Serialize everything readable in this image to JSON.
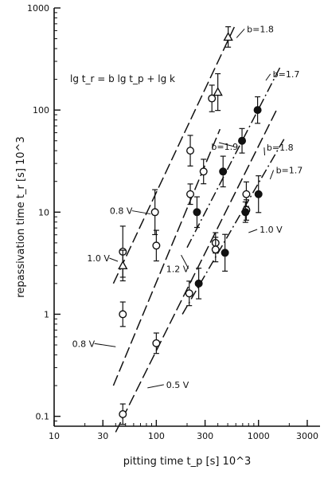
{
  "chart_data": {
    "type": "scatter",
    "title": "",
    "xlabel": "pitting time  t_p [s] 10^3",
    "ylabel": "repassivation time  t_r [s] 10^3",
    "x_scale": "log",
    "y_scale": "log",
    "xlim": [
      10,
      4000
    ],
    "ylim": [
      0.08,
      1000
    ],
    "x_ticks": [
      10,
      30,
      100,
      300,
      1000,
      3000
    ],
    "x_tick_labels": [
      "10",
      "30",
      "100",
      "300",
      "1000",
      "3000"
    ],
    "y_ticks": [
      0.1,
      1,
      10,
      100,
      1000
    ],
    "y_tick_labels": [
      "0.1",
      "1",
      "10",
      "100",
      "1000"
    ],
    "grid": false,
    "equation": "lg t_r = b lg t_p + lg k",
    "series": [
      {
        "marker": "open-circle",
        "line_style": "dashed",
        "points": [
          {
            "x": 47,
            "y": 4.1,
            "err": 0.25
          },
          {
            "x": 97,
            "y": 10,
            "err": 0.22
          },
          {
            "x": 215,
            "y": 40,
            "err": 0.15
          },
          {
            "x": 350,
            "y": 130,
            "err": 0.13
          }
        ],
        "fit": {
          "x": [
            38,
            600
          ],
          "y": [
            2.0,
            700
          ]
        }
      },
      {
        "marker": "open-triangle",
        "line_style": "dashed",
        "points": [
          {
            "x": 47,
            "y": 3.0,
            "err": 0.15
          },
          {
            "x": 400,
            "y": 150,
            "err": 0.18
          },
          {
            "x": 505,
            "y": 520,
            "err": 0.1
          }
        ],
        "fit": null
      },
      {
        "marker": "open-circle",
        "line_style": "dashed",
        "points": [
          {
            "x": 47,
            "y": 1.0,
            "err": 0.12
          },
          {
            "x": 100,
            "y": 4.7,
            "err": 0.15
          },
          {
            "x": 215,
            "y": 15,
            "err": 0.1
          },
          {
            "x": 290,
            "y": 25,
            "err": 0.12
          }
        ],
        "fit": {
          "x": [
            38,
            420
          ],
          "y": [
            0.2,
            65
          ]
        }
      },
      {
        "marker": "filled-circle",
        "line_style": "dash-dot",
        "points": [
          {
            "x": 250,
            "y": 10,
            "err": 0.15
          },
          {
            "x": 450,
            "y": 25,
            "err": 0.15
          },
          {
            "x": 690,
            "y": 50,
            "err": 0.12
          },
          {
            "x": 980,
            "y": 100,
            "err": 0.13
          }
        ],
        "fit": {
          "x": [
            200,
            1650
          ],
          "y": [
            4.5,
            270
          ]
        }
      },
      {
        "marker": "open-circle",
        "line_style": "dashed",
        "points": [
          {
            "x": 47,
            "y": 0.105,
            "err": 0.1
          },
          {
            "x": 100,
            "y": 0.52,
            "err": 0.1
          },
          {
            "x": 210,
            "y": 1.6,
            "err": 0.12
          },
          {
            "x": 380,
            "y": 5.0,
            "err": 0.1
          },
          {
            "x": 380,
            "y": 4.3,
            "err": 0.12
          },
          {
            "x": 760,
            "y": 15,
            "err": 0.12
          },
          {
            "x": 760,
            "y": 10.5,
            "err": 0.1
          }
        ],
        "fit": {
          "x": [
            40,
            1500
          ],
          "y": [
            0.07,
            100
          ]
        }
      },
      {
        "marker": "filled-circle",
        "line_style": "dash-dot",
        "points": [
          {
            "x": 260,
            "y": 2.0,
            "err": 0.15
          },
          {
            "x": 470,
            "y": 4.0,
            "err": 0.18
          },
          {
            "x": 745,
            "y": 10,
            "err": 0.1
          },
          {
            "x": 1000,
            "y": 15,
            "err": 0.18
          }
        ],
        "fit": {
          "x": [
            180,
            1800
          ],
          "y": [
            1.0,
            53
          ]
        }
      }
    ],
    "annotations": [
      {
        "text": "b=1.8",
        "x": 770,
        "y": 580,
        "leader": {
          "x": 610,
          "y": 510
        }
      },
      {
        "text": "b=1.7",
        "x": 1380,
        "y": 210,
        "leader": {
          "x": 1180,
          "y": 195
        }
      },
      {
        "text": "b=1.9",
        "x": 345,
        "y": 41,
        "leader": {
          "x": 410,
          "y": 48
        }
      },
      {
        "text": "b=1.8",
        "x": 1200,
        "y": 40,
        "leader": {
          "x": 1150,
          "y": 36
        }
      },
      {
        "text": "b=1.7",
        "x": 1480,
        "y": 24,
        "leader": {
          "x": 1300,
          "y": 21
        }
      },
      {
        "text": "0.8 V",
        "x": 35,
        "y": 9.6,
        "leader": {
          "x": 88,
          "y": 9.6
        }
      },
      {
        "text": "1.0 V",
        "x": 21,
        "y": 3.3,
        "leader": {
          "x": 42,
          "y": 3.3
        }
      },
      {
        "text": "1.2 V",
        "x": 125,
        "y": 2.6,
        "leader": {
          "x": 175,
          "y": 3.8
        }
      },
      {
        "text": "1.0 V",
        "x": 1025,
        "y": 6.3,
        "leader": {
          "x": 800,
          "y": 6.3
        }
      },
      {
        "text": "0.8 V",
        "x": 15,
        "y": 0.48,
        "leader": {
          "x": 40,
          "y": 0.48
        }
      },
      {
        "text": "0.5 V",
        "x": 125,
        "y": 0.19,
        "leader": {
          "x": 82,
          "y": 0.19
        }
      }
    ]
  }
}
